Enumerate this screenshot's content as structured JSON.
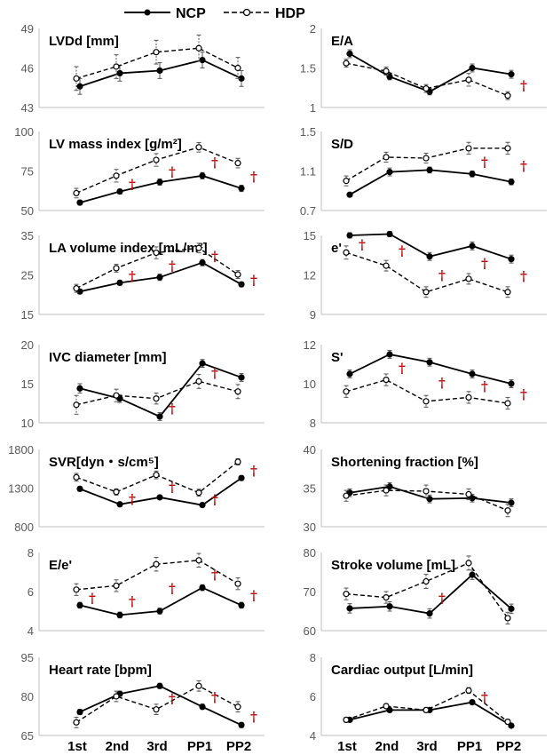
{
  "legend": {
    "ncp": "NCP",
    "hdp": "HDP"
  },
  "colors": {
    "line": "#000000",
    "error_bar": "#555555",
    "significance": "#c00000",
    "axis": "#bfbfbf"
  },
  "chart_data": [
    {
      "type": "line",
      "title": "LVDd [mm]",
      "categories": [
        "1st",
        "2nd",
        "3rd",
        "PP1",
        "PP2"
      ],
      "ylim": [
        43,
        49
      ],
      "yticks": [
        "43",
        "46",
        "49"
      ],
      "series": [
        {
          "name": "NCP",
          "values": [
            44.6,
            45.6,
            45.8,
            46.6,
            45.2
          ],
          "err": [
            0.6,
            0.6,
            0.6,
            0.6,
            0.6
          ]
        },
        {
          "name": "HDP",
          "values": [
            45.2,
            46.1,
            47.2,
            47.5,
            46.0
          ],
          "err": [
            0.9,
            0.9,
            0.9,
            1.0,
            0.8
          ]
        }
      ],
      "daggers": []
    },
    {
      "type": "line",
      "title": "E/A",
      "categories": [
        "1st",
        "2nd",
        "3rd",
        "PP1",
        "PP2"
      ],
      "ylim": [
        1,
        2
      ],
      "yticks": [
        "1",
        "1.5",
        "2"
      ],
      "series": [
        {
          "name": "NCP",
          "values": [
            1.68,
            1.39,
            1.2,
            1.5,
            1.42
          ],
          "err": [
            0.05,
            0.04,
            0.04,
            0.05,
            0.05
          ]
        },
        {
          "name": "HDP",
          "values": [
            1.56,
            1.46,
            1.24,
            1.35,
            1.15
          ],
          "err": [
            0.05,
            0.05,
            0.05,
            0.08,
            0.05
          ]
        }
      ],
      "daggers": [
        4
      ]
    },
    {
      "type": "line",
      "title": "LV mass index [g/m²]",
      "categories": [
        "1st",
        "2nd",
        "3rd",
        "PP1",
        "PP2"
      ],
      "ylim": [
        50,
        100
      ],
      "yticks": [
        "50",
        "75",
        "100"
      ],
      "series": [
        {
          "name": "NCP",
          "values": [
            55,
            62,
            68,
            72,
            64
          ],
          "err": [
            1.5,
            1.5,
            2,
            2,
            2
          ]
        },
        {
          "name": "HDP",
          "values": [
            61,
            72,
            82,
            90,
            80
          ],
          "err": [
            3,
            4,
            4,
            3,
            3
          ]
        }
      ],
      "daggers": [
        1,
        2,
        3,
        4
      ]
    },
    {
      "type": "line",
      "title": "S/D",
      "categories": [
        "1st",
        "2nd",
        "3rd",
        "PP1",
        "PP2"
      ],
      "ylim": [
        0.7,
        1.5
      ],
      "yticks": [
        "0.7",
        "1.1",
        "1.5"
      ],
      "series": [
        {
          "name": "NCP",
          "values": [
            0.86,
            1.09,
            1.11,
            1.07,
            0.99
          ],
          "err": [
            0.02,
            0.04,
            0.03,
            0.03,
            0.03
          ]
        },
        {
          "name": "HDP",
          "values": [
            1.0,
            1.24,
            1.23,
            1.33,
            1.33
          ],
          "err": [
            0.05,
            0.05,
            0.05,
            0.06,
            0.06
          ]
        }
      ],
      "daggers": [
        3,
        4
      ]
    },
    {
      "type": "line",
      "title": "LA volume index [mL/m²]",
      "categories": [
        "1st",
        "2nd",
        "3rd",
        "PP1",
        "PP2"
      ],
      "ylim": [
        15,
        35
      ],
      "yticks": [
        "15",
        "25",
        "35"
      ],
      "series": [
        {
          "name": "NCP",
          "values": [
            20.8,
            23.0,
            24.4,
            28.1,
            22.6
          ],
          "err": [
            0.6,
            0.6,
            0.8,
            0.8,
            0.6
          ]
        },
        {
          "name": "HDP",
          "values": [
            21.6,
            26.7,
            30.6,
            31.8,
            25.1
          ],
          "err": [
            1.0,
            1.0,
            1.5,
            1.2,
            1.0
          ]
        }
      ],
      "daggers": [
        1,
        2,
        3,
        4
      ]
    },
    {
      "type": "line",
      "title": "e'",
      "categories": [
        "1st",
        "2nd",
        "3rd",
        "PP1",
        "PP2"
      ],
      "ylim": [
        9,
        15
      ],
      "yticks": [
        "9",
        "12",
        "15"
      ],
      "series": [
        {
          "name": "NCP",
          "values": [
            15.0,
            15.1,
            13.4,
            14.2,
            13.2
          ],
          "err": [
            0.2,
            0.2,
            0.3,
            0.3,
            0.3
          ]
        },
        {
          "name": "HDP",
          "values": [
            13.7,
            12.7,
            10.7,
            11.7,
            10.7
          ],
          "err": [
            0.5,
            0.4,
            0.4,
            0.4,
            0.4
          ]
        }
      ],
      "daggers": [
        0,
        1,
        2,
        3,
        4
      ]
    },
    {
      "type": "line",
      "title": "IVC diameter [mm]",
      "categories": [
        "1st",
        "2nd",
        "3rd",
        "PP1",
        "PP2"
      ],
      "ylim": [
        10,
        20
      ],
      "yticks": [
        "10",
        "15",
        "20"
      ],
      "series": [
        {
          "name": "NCP",
          "values": [
            14.4,
            13.1,
            10.8,
            17.6,
            15.8
          ],
          "err": [
            0.6,
            0.5,
            0.5,
            0.5,
            0.5
          ]
        },
        {
          "name": "HDP",
          "values": [
            12.3,
            13.5,
            13.1,
            15.3,
            14.0
          ],
          "err": [
            1.2,
            0.8,
            0.7,
            0.9,
            0.9
          ]
        }
      ],
      "daggers": [
        2,
        3
      ]
    },
    {
      "type": "line",
      "title": "S'",
      "categories": [
        "1st",
        "2nd",
        "3rd",
        "PP1",
        "PP2"
      ],
      "ylim": [
        8,
        12
      ],
      "yticks": [
        "8",
        "10",
        "12"
      ],
      "series": [
        {
          "name": "NCP",
          "values": [
            10.5,
            11.5,
            11.1,
            10.5,
            10.0
          ],
          "err": [
            0.2,
            0.2,
            0.2,
            0.2,
            0.2
          ]
        },
        {
          "name": "HDP",
          "values": [
            9.6,
            10.2,
            9.1,
            9.3,
            9.0
          ],
          "err": [
            0.3,
            0.3,
            0.3,
            0.3,
            0.3
          ]
        }
      ],
      "daggers": [
        1,
        2,
        3,
        4
      ]
    },
    {
      "type": "line",
      "title": "SVR[dyn・s/cm⁵]",
      "categories": [
        "1st",
        "2nd",
        "3rd",
        "PP1",
        "PP2"
      ],
      "ylim": [
        800,
        1800
      ],
      "yticks": [
        "800",
        "1300",
        "1800"
      ],
      "series": [
        {
          "name": "NCP",
          "values": [
            1290,
            1090,
            1180,
            1080,
            1430
          ],
          "err": [
            30,
            25,
            25,
            25,
            30
          ]
        },
        {
          "name": "HDP",
          "values": [
            1440,
            1250,
            1470,
            1240,
            1640
          ],
          "err": [
            50,
            40,
            50,
            45,
            40
          ]
        }
      ],
      "daggers": [
        1,
        2,
        3,
        4
      ]
    },
    {
      "type": "line",
      "title": "Shortening fraction [%]",
      "categories": [
        "1st",
        "2nd",
        "3rd",
        "PP1",
        "PP2"
      ],
      "ylim": [
        30,
        40
      ],
      "yticks": [
        "30",
        "35",
        "40"
      ],
      "series": [
        {
          "name": "NCP",
          "values": [
            34.4,
            35.2,
            33.6,
            33.7,
            33.1
          ],
          "err": [
            0.5,
            0.5,
            0.5,
            0.5,
            0.5
          ]
        },
        {
          "name": "HDP",
          "values": [
            34.0,
            34.7,
            34.6,
            34.2,
            32.1
          ],
          "err": [
            0.7,
            0.7,
            0.8,
            0.7,
            0.8
          ]
        }
      ],
      "daggers": []
    },
    {
      "type": "line",
      "title": "E/e'",
      "categories": [
        "1st",
        "2nd",
        "3rd",
        "PP1",
        "PP2"
      ],
      "ylim": [
        4,
        8
      ],
      "yticks": [
        "4",
        "6",
        "8"
      ],
      "series": [
        {
          "name": "NCP",
          "values": [
            5.3,
            4.8,
            5.0,
            6.2,
            5.3
          ],
          "err": [
            0.15,
            0.15,
            0.15,
            0.15,
            0.15
          ]
        },
        {
          "name": "HDP",
          "values": [
            6.1,
            6.3,
            7.4,
            7.6,
            6.4
          ],
          "err": [
            0.3,
            0.3,
            0.35,
            0.35,
            0.3
          ]
        }
      ],
      "daggers": [
        0,
        1,
        2,
        3,
        4
      ]
    },
    {
      "type": "line",
      "title": "Stroke volume [mL]",
      "categories": [
        "1st",
        "2nd",
        "3rd",
        "PP1",
        "PP2"
      ],
      "ylim": [
        60,
        80
      ],
      "yticks": [
        "60",
        "70",
        "80"
      ],
      "series": [
        {
          "name": "NCP",
          "values": [
            65.7,
            66.2,
            64.4,
            74.3,
            65.6
          ],
          "err": [
            1.2,
            1.2,
            1.2,
            1.2,
            1.2
          ]
        },
        {
          "name": "HDP",
          "values": [
            69.4,
            68.5,
            72.6,
            77.3,
            63.2
          ],
          "err": [
            1.5,
            1.5,
            1.8,
            1.8,
            1.5
          ]
        }
      ],
      "daggers": [
        2
      ]
    },
    {
      "type": "line",
      "title": "Heart rate [bpm]",
      "categories": [
        "1st",
        "2nd",
        "3rd",
        "PP1",
        "PP2"
      ],
      "ylim": [
        65,
        95
      ],
      "yticks": [
        "65",
        "80",
        "95"
      ],
      "series": [
        {
          "name": "NCP",
          "values": [
            74,
            81,
            84,
            76,
            69
          ],
          "err": [
            1,
            1,
            1,
            1,
            1
          ]
        },
        {
          "name": "HDP",
          "values": [
            70,
            80,
            75,
            84,
            76
          ],
          "err": [
            2,
            2,
            2,
            2,
            2
          ]
        }
      ],
      "daggers": [
        2,
        3,
        4
      ]
    },
    {
      "type": "line",
      "title": "Cardiac output [L/min]",
      "categories": [
        "1st",
        "2nd",
        "3rd",
        "PP1",
        "PP2"
      ],
      "ylim": [
        4,
        8
      ],
      "yticks": [
        "4",
        "6",
        "8"
      ],
      "series": [
        {
          "name": "NCP",
          "values": [
            4.8,
            5.3,
            5.3,
            5.7,
            4.5
          ],
          "err": [
            0.1,
            0.1,
            0.1,
            0.1,
            0.1
          ]
        },
        {
          "name": "HDP",
          "values": [
            4.8,
            5.5,
            5.3,
            6.3,
            4.7
          ],
          "err": [
            0.12,
            0.12,
            0.12,
            0.15,
            0.12
          ]
        }
      ],
      "daggers": [
        3
      ]
    }
  ],
  "x_categories": [
    "1st",
    "2nd",
    "3rd",
    "PP1",
    "PP2"
  ],
  "dagger_symbol": "†"
}
